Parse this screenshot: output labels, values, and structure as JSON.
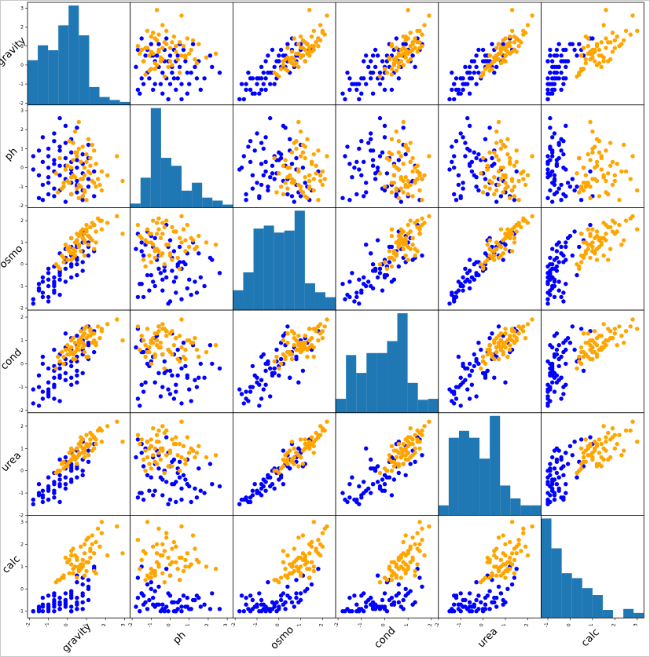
{
  "chart_data": {
    "type": "scatter",
    "matrix": "scatter-matrix",
    "variables": [
      "gravity",
      "ph",
      "osmo",
      "cond",
      "urea",
      "calc"
    ],
    "axis_range": [
      [
        -2.1,
        3.3
      ],
      [
        -2.1,
        3.3
      ],
      [
        -2.1,
        2.6
      ],
      [
        -2.1,
        2.3
      ],
      [
        -2.0,
        2.6
      ],
      [
        -1.3,
        3.3
      ]
    ],
    "ticks": [
      [
        "-2",
        "-1",
        "0",
        "1",
        "2",
        "3"
      ],
      [
        "-2",
        "-1",
        "0",
        "1",
        "2",
        "3"
      ],
      [
        "-2",
        "-1",
        "0",
        "1",
        "2"
      ],
      [
        "-2",
        "-1",
        "0",
        "1",
        "2"
      ],
      [
        "-2",
        "-1",
        "0",
        "1",
        "2"
      ],
      [
        "-1",
        "0",
        "1",
        "2",
        "3"
      ]
    ],
    "series_colors": [
      "#0000ff",
      "#ffa500"
    ],
    "hist_color": "#1f77b4",
    "histograms": [
      [
        0.45,
        0.6,
        0.55,
        0.8,
        1.0,
        0.7,
        0.18,
        0.08,
        0.05,
        0.03
      ],
      [
        0.04,
        0.3,
        1.0,
        0.5,
        0.42,
        0.17,
        0.25,
        0.1,
        0.07,
        0.03
      ],
      [
        0.2,
        0.38,
        0.82,
        0.85,
        0.78,
        0.8,
        1.0,
        0.27,
        0.18,
        0.13
      ],
      [
        0.14,
        0.58,
        0.4,
        0.6,
        0.6,
        0.72,
        1.0,
        0.3,
        0.13,
        0.14
      ],
      [
        0.1,
        0.78,
        0.85,
        0.78,
        0.57,
        1.0,
        0.3,
        0.17,
        0.1,
        0.1
      ],
      [
        1.0,
        0.7,
        0.45,
        0.4,
        0.3,
        0.23,
        0.08,
        0.0,
        0.09,
        0.05
      ]
    ],
    "points": [
      {
        "g": -1.8,
        "p": 0.6,
        "o": -1.6,
        "c": -1.7,
        "u": -1.3,
        "k": -1.0,
        "t": 0
      },
      {
        "g": -1.5,
        "p": -0.4,
        "o": -1.2,
        "c": -1.0,
        "u": -1.1,
        "k": -0.9,
        "t": 0
      },
      {
        "g": -1.3,
        "p": 0.3,
        "o": -1.3,
        "c": -1.2,
        "u": -1.4,
        "k": -1.0,
        "t": 0
      },
      {
        "g": -1.0,
        "p": -0.8,
        "o": -1.0,
        "c": -0.8,
        "u": -0.9,
        "k": -0.8,
        "t": 0
      },
      {
        "g": -1.0,
        "p": 1.0,
        "o": -0.7,
        "c": -1.1,
        "u": -0.7,
        "k": -0.9,
        "t": 0
      },
      {
        "g": -0.7,
        "p": -0.2,
        "o": -0.6,
        "c": -0.3,
        "u": -0.5,
        "k": -0.8,
        "t": 0
      },
      {
        "g": -0.7,
        "p": 1.8,
        "o": -1.0,
        "c": -0.6,
        "u": -1.0,
        "k": -0.7,
        "t": 0
      },
      {
        "g": -0.4,
        "p": 0.1,
        "o": -0.3,
        "c": -0.5,
        "u": -0.6,
        "k": -0.6,
        "t": 0
      },
      {
        "g": -0.4,
        "p": -1.2,
        "o": -0.5,
        "c": 0.0,
        "u": -0.2,
        "k": -0.9,
        "t": 0
      },
      {
        "g": -0.1,
        "p": 0.5,
        "o": 0.1,
        "c": 0.2,
        "u": -0.3,
        "k": -0.5,
        "t": 0
      },
      {
        "g": -0.1,
        "p": -0.6,
        "o": -0.2,
        "c": -0.4,
        "u": 0.1,
        "k": -0.7,
        "t": 0
      },
      {
        "g": 0.2,
        "p": -1.4,
        "o": 0.4,
        "c": 0.5,
        "u": 0.2,
        "k": -0.3,
        "t": 0
      },
      {
        "g": 0.2,
        "p": 0.8,
        "o": 0.0,
        "c": -0.1,
        "u": -0.4,
        "k": -0.8,
        "t": 0
      },
      {
        "g": 0.5,
        "p": -0.9,
        "o": 0.8,
        "c": 0.3,
        "u": 0.6,
        "k": -0.4,
        "t": 0
      },
      {
        "g": 0.5,
        "p": 2.1,
        "o": 0.3,
        "c": 0.8,
        "u": 0.3,
        "k": -0.9,
        "t": 0
      },
      {
        "g": 0.8,
        "p": -1.5,
        "o": 1.0,
        "c": 1.0,
        "u": 0.8,
        "k": -0.2,
        "t": 0
      },
      {
        "g": 0.8,
        "p": 0.2,
        "o": 0.6,
        "c": 0.4,
        "u": 0.5,
        "k": -0.6,
        "t": 0
      },
      {
        "g": 1.1,
        "p": -1.0,
        "o": 1.3,
        "c": 0.9,
        "u": 1.1,
        "k": 0.0,
        "t": 0
      },
      {
        "g": -1.3,
        "p": -1.7,
        "o": -1.5,
        "c": -1.5,
        "u": -1.2,
        "k": -0.4,
        "t": 0
      },
      {
        "g": -1.0,
        "p": 0.0,
        "o": -1.7,
        "c": -1.3,
        "u": -1.3,
        "k": -0.3,
        "t": 0
      },
      {
        "g": -0.7,
        "p": -1.5,
        "o": -0.9,
        "c": -0.9,
        "u": -1.0,
        "k": -0.2,
        "t": 0
      },
      {
        "g": -0.1,
        "p": 1.3,
        "o": -0.8,
        "c": -0.7,
        "u": -0.8,
        "k": -0.5,
        "t": 0
      },
      {
        "g": 0.2,
        "p": -0.3,
        "o": -0.1,
        "c": 0.1,
        "u": 0.0,
        "k": -1.0,
        "t": 0
      },
      {
        "g": 1.1,
        "p": 0.5,
        "o": 0.8,
        "c": 0.2,
        "u": 0.4,
        "k": 0.4,
        "t": 0
      },
      {
        "g": -0.4,
        "p": 2.6,
        "o": -0.4,
        "c": -0.2,
        "u": -0.7,
        "k": -0.9,
        "t": 0
      },
      {
        "g": 0.5,
        "p": -0.7,
        "o": 0.2,
        "c": 1.2,
        "u": 0.9,
        "k": -0.7,
        "t": 0
      },
      {
        "g": -1.5,
        "p": 0.9,
        "o": -1.1,
        "c": -0.5,
        "u": -0.6,
        "k": -0.8,
        "t": 0
      },
      {
        "g": 0.8,
        "p": -1.2,
        "o": 1.5,
        "c": 0.6,
        "u": 1.3,
        "k": 0.2,
        "t": 0
      },
      {
        "g": -0.7,
        "p": 0.4,
        "o": -0.1,
        "c": 0.6,
        "u": -0.1,
        "k": -0.6,
        "t": 0
      },
      {
        "g": 0.2,
        "p": 1.5,
        "o": 0.5,
        "c": -0.6,
        "u": 0.1,
        "k": -0.4,
        "t": 0
      },
      {
        "g": -1.0,
        "p": -0.5,
        "o": -0.4,
        "c": -1.4,
        "u": -0.3,
        "k": -1.0,
        "t": 0
      },
      {
        "g": -0.1,
        "p": -1.8,
        "o": 0.7,
        "c": 0.7,
        "u": 0.6,
        "k": -0.8,
        "t": 0
      },
      {
        "g": 0.5,
        "p": 0.0,
        "o": 1.1,
        "c": -0.3,
        "u": 0.2,
        "k": 0.6,
        "t": 0
      },
      {
        "g": -0.4,
        "p": 1.1,
        "o": -1.4,
        "c": -1.6,
        "u": -1.4,
        "k": -0.9,
        "t": 0
      },
      {
        "g": 1.4,
        "p": -0.2,
        "o": 1.8,
        "c": 1.4,
        "u": 1.5,
        "k": 0.9,
        "t": 0
      },
      {
        "g": -1.3,
        "p": -0.9,
        "o": -0.8,
        "c": 0.3,
        "u": -1.1,
        "k": -0.7,
        "t": 0
      },
      {
        "g": 0.8,
        "p": 0.7,
        "o": 0.1,
        "c": 0.9,
        "u": -0.2,
        "k": -0.3,
        "t": 0
      },
      {
        "g": -0.7,
        "p": -1.1,
        "o": -1.2,
        "c": -0.1,
        "u": -0.9,
        "k": -0.5,
        "t": 0
      },
      {
        "g": 0.2,
        "p": 0.3,
        "o": -0.6,
        "c": -0.9,
        "u": -0.5,
        "k": -1.0,
        "t": 0
      },
      {
        "g": 1.1,
        "p": -0.6,
        "o": 0.4,
        "c": 1.6,
        "u": 0.7,
        "k": 0.1,
        "t": 0
      },
      {
        "g": -1.8,
        "p": -0.1,
        "o": -1.8,
        "c": -1.1,
        "u": -1.5,
        "k": -1.0,
        "t": 0
      },
      {
        "g": -0.1,
        "p": 2.2,
        "o": 0.2,
        "c": 0.0,
        "u": -0.6,
        "k": -0.2,
        "t": 0
      },
      {
        "g": 0.5,
        "p": -1.3,
        "o": 0.9,
        "c": -0.8,
        "u": 1.0,
        "k": -0.6,
        "t": 0
      },
      {
        "g": -1.0,
        "p": 0.6,
        "o": -0.2,
        "c": -0.2,
        "u": -0.8,
        "k": -0.8,
        "t": 0
      },
      {
        "g": 0.2,
        "p": -0.8,
        "o": 1.2,
        "c": 1.1,
        "u": 0.3,
        "k": -0.1,
        "t": 0
      },
      {
        "g": -0.4,
        "p": -0.4,
        "o": -0.7,
        "c": 0.4,
        "u": -0.4,
        "k": -0.7,
        "t": 0
      },
      {
        "g": 1.4,
        "p": -1.5,
        "o": 0.6,
        "c": 0.5,
        "u": 1.2,
        "k": 1.0,
        "t": 0
      },
      {
        "g": -0.7,
        "p": 1.4,
        "o": -1.3,
        "c": -1.0,
        "u": -1.2,
        "k": -0.3,
        "t": 0
      },
      {
        "g": 0.8,
        "p": -0.3,
        "o": -0.3,
        "c": -0.4,
        "u": 0.0,
        "k": -0.9,
        "t": 0
      },
      {
        "g": -1.5,
        "p": -1.6,
        "o": -0.9,
        "c": -1.8,
        "u": -1.0,
        "k": -1.0,
        "t": 0
      },
      {
        "g": -0.1,
        "p": 0.1,
        "o": 0.3,
        "c": 1.3,
        "u": 0.4,
        "k": -0.6,
        "t": 0
      },
      {
        "g": 0.5,
        "p": -1.0,
        "o": -0.5,
        "c": 0.1,
        "u": -0.3,
        "k": 0.3,
        "t": 0
      },
      {
        "g": -0.4,
        "p": 0.9,
        "o": 0.5,
        "c": -0.6,
        "u": 0.5,
        "k": -0.4,
        "t": 0
      },
      {
        "g": 1.1,
        "p": 1.2,
        "o": 1.0,
        "c": 0.8,
        "u": 0.9,
        "k": -0.5,
        "t": 0
      },
      {
        "g": -1.0,
        "p": -1.4,
        "o": -1.5,
        "c": -1.2,
        "u": -1.3,
        "k": -0.7,
        "t": 0
      },
      {
        "g": 0.2,
        "p": -0.1,
        "o": 0.8,
        "c": 0.6,
        "u": 0.8,
        "k": -0.2,
        "t": 0
      },
      {
        "g": -0.7,
        "p": 0.2,
        "o": -0.8,
        "c": -1.5,
        "u": -0.6,
        "k": -1.0,
        "t": 0
      },
      {
        "g": 0.8,
        "p": -1.7,
        "o": 1.4,
        "c": 1.5,
        "u": 1.4,
        "k": 0.5,
        "t": 0
      },
      {
        "g": -1.3,
        "p": 1.6,
        "o": -0.6,
        "c": 0.0,
        "u": -0.9,
        "k": -0.8,
        "t": 0
      },
      {
        "g": 0.5,
        "p": 0.4,
        "o": 0.0,
        "c": -0.5,
        "u": 0.1,
        "k": -0.9,
        "t": 0
      },
      {
        "g": 0.2,
        "p": -0.5,
        "o": 1.2,
        "c": 0.7,
        "u": 1.0,
        "k": 1.5,
        "t": 1
      },
      {
        "g": 0.6,
        "p": -0.9,
        "o": 0.9,
        "c": 0.9,
        "u": 0.7,
        "k": 0.8,
        "t": 1
      },
      {
        "g": 1.0,
        "p": 0.3,
        "o": 1.5,
        "c": 1.1,
        "u": 1.2,
        "k": 1.2,
        "t": 1
      },
      {
        "g": -0.3,
        "p": -1.1,
        "o": 0.4,
        "c": 0.5,
        "u": 0.3,
        "k": 0.5,
        "t": 1
      },
      {
        "g": 1.3,
        "p": -0.7,
        "o": 1.9,
        "c": 1.3,
        "u": 1.6,
        "k": 2.0,
        "t": 1
      },
      {
        "g": 0.4,
        "p": 0.8,
        "o": 0.6,
        "c": 0.2,
        "u": 0.5,
        "k": 1.0,
        "t": 1
      },
      {
        "g": 0.9,
        "p": -1.3,
        "o": 1.1,
        "c": 0.8,
        "u": 0.9,
        "k": 1.6,
        "t": 1
      },
      {
        "g": -0.6,
        "p": -0.3,
        "o": 0.0,
        "c": -0.2,
        "u": -0.1,
        "k": 0.3,
        "t": 1
      },
      {
        "g": 1.6,
        "p": -0.6,
        "o": 2.1,
        "c": 1.6,
        "u": 1.8,
        "k": 2.7,
        "t": 1
      },
      {
        "g": 0.1,
        "p": 1.4,
        "o": 0.8,
        "c": 0.6,
        "u": 0.8,
        "k": 1.3,
        "t": 1
      },
      {
        "g": 0.7,
        "p": -1.0,
        "o": 1.4,
        "c": 1.0,
        "u": 1.1,
        "k": 0.9,
        "t": 1
      },
      {
        "g": 1.2,
        "p": 0.1,
        "o": 1.7,
        "c": 1.4,
        "u": 1.4,
        "k": 1.8,
        "t": 1
      },
      {
        "g": -0.2,
        "p": -0.8,
        "o": 0.3,
        "c": 0.3,
        "u": 0.4,
        "k": 0.6,
        "t": 1
      },
      {
        "g": 0.5,
        "p": 0.6,
        "o": 1.0,
        "c": 0.7,
        "u": 0.6,
        "k": 1.4,
        "t": 1
      },
      {
        "g": 1.8,
        "p": -1.2,
        "o": 1.6,
        "c": 1.5,
        "u": 1.3,
        "k": 3.0,
        "t": 1
      },
      {
        "g": 0.3,
        "p": -0.4,
        "o": 0.5,
        "c": 0.4,
        "u": 0.9,
        "k": 0.7,
        "t": 1
      },
      {
        "g": 0.8,
        "p": 1.1,
        "o": 1.2,
        "c": 0.9,
        "u": 1.0,
        "k": 1.1,
        "t": 1
      },
      {
        "g": 1.1,
        "p": -0.2,
        "o": 0.9,
        "c": 1.2,
        "u": 0.7,
        "k": 2.3,
        "t": 1
      },
      {
        "g": -0.4,
        "p": 0.5,
        "o": -0.2,
        "c": 0.1,
        "u": 0.0,
        "k": 0.4,
        "t": 1
      },
      {
        "g": 0.6,
        "p": -1.6,
        "o": 1.3,
        "c": 0.6,
        "u": 1.2,
        "k": 0.9,
        "t": 1
      },
      {
        "g": 1.4,
        "p": 0.9,
        "o": 1.8,
        "c": 1.0,
        "u": 1.5,
        "k": 1.6,
        "t": 1
      },
      {
        "g": 0.0,
        "p": -0.7,
        "o": 0.7,
        "c": 0.8,
        "u": 0.3,
        "k": 1.2,
        "t": 1
      },
      {
        "g": 0.9,
        "p": 0.0,
        "o": 0.4,
        "c": 1.3,
        "u": 0.8,
        "k": 0.6,
        "t": 1
      },
      {
        "g": 1.7,
        "p": -0.9,
        "o": 2.0,
        "c": 1.1,
        "u": 1.9,
        "k": 1.9,
        "t": 1
      },
      {
        "g": 0.4,
        "p": 1.9,
        "o": 1.0,
        "c": 0.5,
        "u": 0.6,
        "k": 1.0,
        "t": 1
      },
      {
        "g": 0.2,
        "p": -1.4,
        "o": 0.2,
        "c": 1.0,
        "u": 0.5,
        "k": 1.7,
        "t": 1
      },
      {
        "g": 1.0,
        "p": 0.7,
        "o": 1.6,
        "c": 0.3,
        "u": 1.1,
        "k": 0.8,
        "t": 1
      },
      {
        "g": -0.1,
        "p": -0.1,
        "o": 0.9,
        "c": 0.6,
        "u": 0.2,
        "k": 1.4,
        "t": 1
      },
      {
        "g": 0.7,
        "p": -0.6,
        "o": 0.6,
        "c": 1.4,
        "u": 1.3,
        "k": 1.1,
        "t": 1
      },
      {
        "g": 1.3,
        "p": 1.2,
        "o": 1.1,
        "c": 0.9,
        "u": 0.9,
        "k": 2.4,
        "t": 1
      },
      {
        "g": 0.5,
        "p": -1.1,
        "o": 1.4,
        "c": 0.7,
        "u": 1.0,
        "k": 0.5,
        "t": 1
      },
      {
        "g": 2.1,
        "p": -0.4,
        "o": 1.9,
        "c": 1.7,
        "u": 2.0,
        "k": 1.5,
        "t": 1
      },
      {
        "g": 0.3,
        "p": 0.4,
        "o": 0.3,
        "c": 0.2,
        "u": 0.7,
        "k": 0.9,
        "t": 1
      },
      {
        "g": 0.8,
        "p": -1.5,
        "o": 1.2,
        "c": 1.2,
        "u": 1.4,
        "k": 1.3,
        "t": 1
      },
      {
        "g": 1.5,
        "p": 0.2,
        "o": 1.5,
        "c": 0.8,
        "u": 1.2,
        "k": 2.1,
        "t": 1
      },
      {
        "g": 0.1,
        "p": -0.8,
        "o": 0.6,
        "c": 0.4,
        "u": 0.4,
        "k": 0.7,
        "t": 1
      },
      {
        "g": 0.6,
        "p": 1.0,
        "o": 0.8,
        "c": 1.0,
        "u": 0.8,
        "k": 1.0,
        "t": 1
      },
      {
        "g": 1.2,
        "p": -0.3,
        "o": 1.7,
        "c": 1.5,
        "u": 1.7,
        "k": 1.7,
        "t": 1
      },
      {
        "g": 0.9,
        "p": -1.2,
        "o": 1.0,
        "c": 0.5,
        "u": 0.6,
        "k": 0.6,
        "t": 1
      },
      {
        "g": 2.6,
        "p": 0.6,
        "o": 2.2,
        "c": 1.9,
        "u": 2.2,
        "k": 2.8,
        "t": 1
      },
      {
        "g": 0.4,
        "p": -0.5,
        "o": 0.4,
        "c": 0.9,
        "u": 0.5,
        "k": 1.5,
        "t": 1
      },
      {
        "g": 1.1,
        "p": 1.5,
        "o": 1.3,
        "c": 0.3,
        "u": 1.1,
        "k": 1.2,
        "t": 1
      },
      {
        "g": -0.2,
        "p": -1.0,
        "o": 0.1,
        "c": 0.0,
        "u": 0.1,
        "k": 0.5,
        "t": 1
      },
      {
        "g": 0.7,
        "p": 0.3,
        "o": 1.5,
        "c": 1.1,
        "u": 1.5,
        "k": 1.9,
        "t": 1
      },
      {
        "g": 1.4,
        "p": -0.8,
        "o": 0.7,
        "c": 1.3,
        "u": 1.0,
        "k": 0.8,
        "t": 1
      },
      {
        "g": 0.5,
        "p": 0.8,
        "o": 1.1,
        "c": 0.6,
        "u": 0.3,
        "k": 1.3,
        "t": 1
      },
      {
        "g": 1.0,
        "p": -1.7,
        "o": 1.8,
        "c": 1.6,
        "u": 1.6,
        "k": 2.2,
        "t": 1
      },
      {
        "g": 0.2,
        "p": 0.0,
        "o": 0.5,
        "c": 0.5,
        "u": 0.9,
        "k": 1.1,
        "t": 1
      },
      {
        "g": 2.9,
        "p": -0.7,
        "o": 1.4,
        "c": 1.0,
        "u": 1.3,
        "k": 1.6,
        "t": 1
      },
      {
        "g": 0.6,
        "p": 2.4,
        "o": 0.9,
        "c": 0.8,
        "u": 0.7,
        "k": 0.9,
        "t": 1
      },
      {
        "g": 1.8,
        "p": -0.2,
        "o": 2.0,
        "c": 1.4,
        "u": 1.8,
        "k": 2.5,
        "t": 1
      },
      {
        "g": -0.5,
        "p": -1.3,
        "o": -0.1,
        "c": 0.3,
        "u": 0.0,
        "k": 0.4,
        "t": 1
      },
      {
        "g": 1.2,
        "p": 0.5,
        "o": 1.2,
        "c": 1.2,
        "u": 1.2,
        "k": 1.4,
        "t": 1
      },
      {
        "g": 0.8,
        "p": -0.6,
        "o": 1.6,
        "c": 0.7,
        "u": 0.8,
        "k": 1.0,
        "t": 1
      },
      {
        "g": 0.3,
        "p": 1.3,
        "o": 0.7,
        "c": 1.1,
        "u": 0.6,
        "k": 1.8,
        "t": 1
      },
      {
        "g": 1.5,
        "p": -1.0,
        "o": 1.0,
        "c": 0.9,
        "u": 1.4,
        "k": 0.7,
        "t": 1
      },
      {
        "g": 0.0,
        "p": 0.1,
        "o": 0.2,
        "c": 0.4,
        "u": 0.2,
        "k": 1.2,
        "t": 1
      },
      {
        "g": 0.9,
        "p": -0.4,
        "o": 1.4,
        "c": 1.5,
        "u": 1.0,
        "k": 2.0,
        "t": 1
      }
    ]
  }
}
